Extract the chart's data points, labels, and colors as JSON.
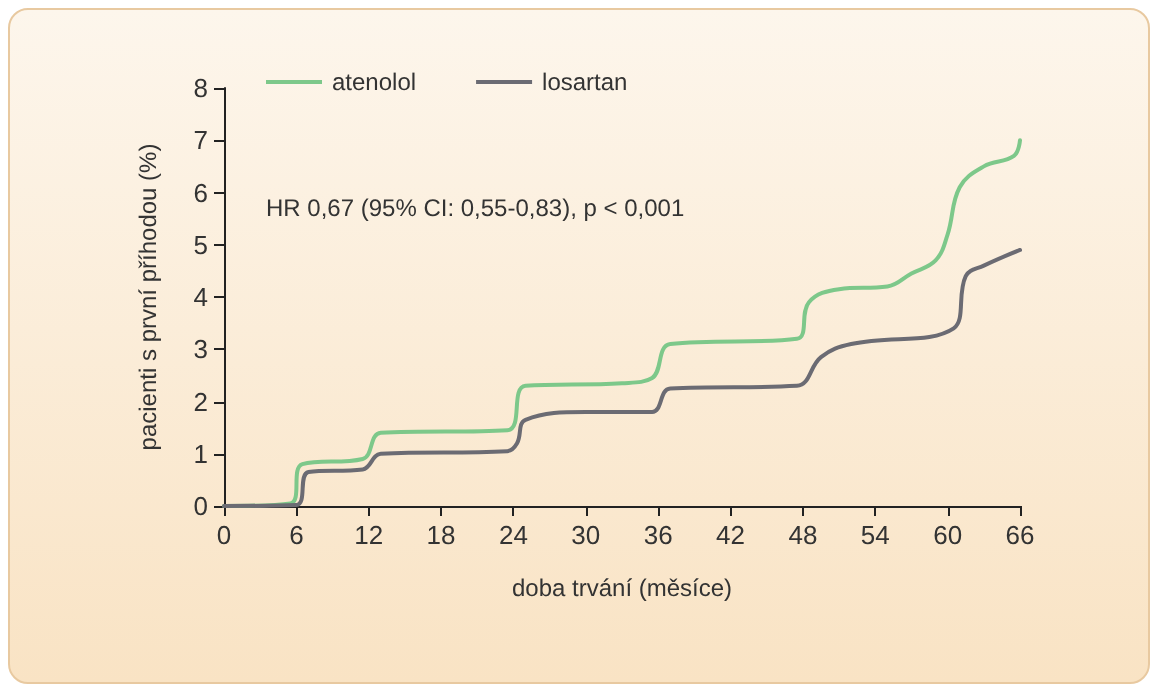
{
  "chart_data": {
    "type": "line",
    "xlabel": "doba trvání (měsíce)",
    "ylabel": "pacienti s první příhodou (%)",
    "annotations": [
      "HR 0,67 (95% CI: 0,55-0,83), p < 0,001"
    ],
    "xlim": [
      0,
      66
    ],
    "xticks": [
      0,
      6,
      12,
      18,
      24,
      30,
      36,
      42,
      48,
      54,
      60,
      66
    ],
    "ylim": [
      0,
      8
    ],
    "yticks": [
      0,
      1,
      2,
      3,
      4,
      5,
      6,
      7,
      8
    ],
    "grid": false,
    "legend": "top left",
    "marker": "none",
    "line_style": "solid",
    "series": [
      {
        "name": "atenolol",
        "color": "#7dc88a",
        "x": [
          0,
          5.5,
          6.5,
          11.5,
          13,
          23.5,
          25,
          33,
          35.5,
          37,
          47.5,
          48.5,
          51,
          55,
          57,
          59,
          60,
          61,
          63,
          65.5,
          66
        ],
        "values": [
          0,
          0.05,
          0.8,
          0.9,
          1.4,
          1.45,
          2.3,
          2.35,
          2.45,
          3.1,
          3.2,
          3.9,
          4.15,
          4.2,
          4.45,
          4.7,
          5.2,
          6.1,
          6.5,
          6.7,
          7.0
        ]
      },
      {
        "name": "losartan",
        "color": "#6b6b73",
        "x": [
          0,
          6,
          7,
          11.5,
          13,
          23.5,
          24.3,
          25,
          30,
          35.5,
          37,
          47.5,
          49.5,
          52,
          60.5,
          61.5,
          63,
          66
        ],
        "values": [
          0,
          0.02,
          0.65,
          0.7,
          1.0,
          1.05,
          1.2,
          1.65,
          1.8,
          1.8,
          2.25,
          2.3,
          2.85,
          3.1,
          3.4,
          4.4,
          4.6,
          4.9
        ]
      }
    ]
  }
}
